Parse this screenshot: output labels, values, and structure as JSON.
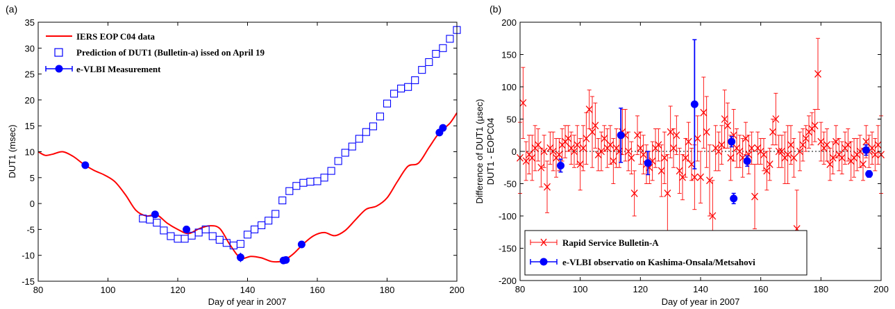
{
  "chart_data": [
    {
      "type": "line",
      "panel_label": "(a)",
      "xlabel": "Day of year in  2007",
      "ylabel": "DUT1 (msec)",
      "xlim": [
        80,
        200
      ],
      "ylim": [
        -15,
        35
      ],
      "xticks": [
        "80",
        "100",
        "120",
        "140",
        "160",
        "180",
        "200"
      ],
      "yticks": [
        "-15",
        "-10",
        "-5",
        "0",
        "5",
        "10",
        "15",
        "20",
        "25",
        "30",
        "35"
      ],
      "legend_position": "top-left",
      "series": [
        {
          "name": "IERS EOP C04 data",
          "style": "line",
          "color": "#ff0000",
          "x": [
            80,
            82,
            84,
            87,
            90,
            93,
            96,
            99,
            102,
            105,
            108,
            111,
            114,
            117,
            120,
            123,
            126,
            129,
            132,
            135,
            138,
            141,
            144,
            147,
            150,
            153,
            156,
            159,
            162,
            165,
            168,
            171,
            174,
            177,
            180,
            183,
            186,
            189,
            192,
            195,
            198,
            200
          ],
          "y": [
            10,
            9.3,
            9.5,
            10,
            9.1,
            7.6,
            6.4,
            5.5,
            4.2,
            1.7,
            -1.3,
            -2.4,
            -2.2,
            -3.8,
            -5,
            -5.8,
            -4.9,
            -4.3,
            -4.8,
            -8,
            -10.5,
            -10.2,
            -10.5,
            -11.2,
            -11.1,
            -9.8,
            -7.8,
            -6.2,
            -5.6,
            -6.2,
            -5.2,
            -3.1,
            -1.1,
            -0.5,
            1.1,
            4.3,
            7.2,
            7.8,
            10.8,
            13.7,
            15.5,
            17.5
          ]
        },
        {
          "name": "Prediction of DUT1 (Bulletin-a) issed on April 19",
          "style": "open-square",
          "color": "#0000ff",
          "x": [
            110,
            112,
            114,
            116,
            118,
            120,
            122,
            124,
            126,
            128,
            130,
            132,
            134,
            136,
            138,
            140,
            142,
            144,
            146,
            148,
            150,
            152,
            154,
            156,
            158,
            160,
            162,
            164,
            166,
            168,
            170,
            172,
            174,
            176,
            178,
            180,
            182,
            184,
            186,
            188,
            190,
            192,
            194,
            196,
            198,
            200
          ],
          "y": [
            -2.9,
            -3.1,
            -3.7,
            -5.2,
            -6.3,
            -6.8,
            -6.8,
            -6.2,
            -5.6,
            -5.0,
            -6.3,
            -7.0,
            -7.6,
            -8.1,
            -7.8,
            -6.0,
            -5.0,
            -4.2,
            -3.3,
            -2.0,
            0.6,
            2.4,
            3.4,
            4.0,
            4.2,
            4.3,
            5.0,
            6.3,
            8.2,
            9.8,
            11.0,
            12.5,
            13.8,
            14.9,
            16.8,
            19.3,
            21.2,
            22.2,
            22.5,
            23.8,
            25.8,
            27.3,
            28.9,
            30.0,
            31.8,
            33.5
          ]
        },
        {
          "name": "e-VLBI Measurement",
          "style": "filled-circle-errorbar",
          "color": "#0000ff",
          "x": [
            93.5,
            113.5,
            122.5,
            138,
            150.3,
            151,
            155.5,
            195,
            196
          ],
          "y": [
            7.4,
            -2.1,
            -5,
            -10.4,
            -11,
            -10.9,
            -7.9,
            13.7,
            14.6
          ],
          "yerr": [
            0.3,
            0.3,
            0.3,
            0.9,
            0.3,
            0.3,
            0.3,
            0.4,
            0.3
          ]
        }
      ]
    },
    {
      "type": "scatter",
      "panel_label": "(b)",
      "xlabel": "Day of year in  2007",
      "ylabel": "Difference of DUT1 (μsec)",
      "ylabel2": "DUT1 - EOPC04",
      "xlim": [
        80,
        200
      ],
      "ylim": [
        -200,
        200
      ],
      "xticks": [
        "80",
        "100",
        "120",
        "140",
        "160",
        "180",
        "200"
      ],
      "yticks": [
        "-200",
        "-150",
        "-100",
        "-50",
        "0",
        "50",
        "100",
        "150",
        "200"
      ],
      "zero_line": true,
      "legend_position": "bottom-left",
      "series": [
        {
          "name": "Rapid Service Bulletin-A",
          "style": "x-marker-errorbar",
          "color": "#ff0000",
          "x": [
            80,
            81,
            82,
            83,
            84,
            85,
            86,
            87,
            88,
            89,
            90,
            91,
            92,
            93,
            94,
            95,
            96,
            97,
            98,
            99,
            100,
            101,
            102,
            103,
            104,
            105,
            106,
            107,
            108,
            109,
            110,
            111,
            112,
            113,
            114,
            115,
            116,
            117,
            118,
            119,
            120,
            121,
            122,
            123,
            124,
            125,
            126,
            127,
            128,
            129,
            130,
            131,
            132,
            133,
            134,
            135,
            136,
            137,
            138,
            139,
            140,
            141,
            142,
            143,
            144,
            145,
            146,
            147,
            148,
            149,
            150,
            151,
            152,
            153,
            154,
            155,
            156,
            157,
            158,
            159,
            160,
            161,
            162,
            163,
            164,
            165,
            166,
            167,
            168,
            169,
            170,
            171,
            172,
            173,
            174,
            175,
            176,
            177,
            178,
            179,
            180,
            181,
            182,
            183,
            184,
            185,
            186,
            187,
            188,
            189,
            190,
            191,
            192,
            193,
            194,
            195,
            196,
            197,
            198,
            199,
            200
          ],
          "y": [
            -10,
            75,
            -15,
            -5,
            -10,
            5,
            10,
            -25,
            0,
            -55,
            5,
            0,
            -10,
            -5,
            10,
            15,
            20,
            5,
            0,
            10,
            -20,
            5,
            20,
            65,
            30,
            40,
            -5,
            0,
            20,
            5,
            10,
            -15,
            5,
            0,
            30,
            25,
            0,
            -10,
            -65,
            25,
            5,
            -5,
            -20,
            -25,
            -15,
            5,
            10,
            -30,
            -10,
            -65,
            30,
            5,
            25,
            -30,
            -40,
            -10,
            15,
            -20,
            -40,
            20,
            -40,
            60,
            30,
            -45,
            -100,
            5,
            0,
            10,
            50,
            40,
            -10,
            25,
            5,
            0,
            -10,
            20,
            -5,
            5,
            -70,
            5,
            0,
            -5,
            -30,
            -20,
            30,
            50,
            0,
            0,
            -10,
            -5,
            10,
            -10,
            -120,
            0,
            10,
            20,
            30,
            35,
            40,
            120,
            15,
            5,
            10,
            -20,
            -10,
            15,
            -5,
            -10,
            5,
            10,
            -15,
            -10,
            -5,
            0,
            -20,
            15,
            0,
            5,
            -5,
            10,
            -5
          ],
          "yerr": [
            55,
            55,
            30,
            30,
            35,
            35,
            25,
            30,
            25,
            40,
            25,
            30,
            30,
            25,
            25,
            25,
            20,
            25,
            25,
            30,
            40,
            35,
            40,
            30,
            55,
            35,
            25,
            30,
            20,
            30,
            30,
            35,
            30,
            25,
            35,
            40,
            30,
            25,
            35,
            30,
            25,
            30,
            30,
            25,
            30,
            30,
            25,
            40,
            40,
            60,
            40,
            30,
            30,
            35,
            35,
            30,
            30,
            25,
            50,
            35,
            40,
            55,
            55,
            55,
            55,
            35,
            30,
            30,
            45,
            35,
            35,
            40,
            30,
            25,
            30,
            25,
            30,
            25,
            50,
            25,
            20,
            25,
            30,
            25,
            20,
            40,
            25,
            25,
            40,
            45,
            30,
            30,
            60,
            30,
            25,
            20,
            25,
            25,
            25,
            55,
            30,
            25,
            25,
            25,
            25,
            25,
            25,
            25,
            25,
            25,
            30,
            30,
            25,
            25,
            25,
            25,
            25,
            25,
            25,
            30,
            60
          ]
        },
        {
          "name": "e-VLBI observatio on Kashima-Onsala/Metsahovi",
          "style": "filled-circle-errorbar",
          "color": "#0000ff",
          "x": [
            93.5,
            113.5,
            122.5,
            138,
            150.3,
            151,
            155.5,
            195,
            196
          ],
          "y": [
            -22,
            25,
            -18,
            73,
            15,
            -73,
            -15,
            2,
            -35
          ],
          "yerr": [
            10,
            42,
            18,
            100,
            8,
            8,
            8,
            8,
            5
          ]
        }
      ]
    }
  ]
}
